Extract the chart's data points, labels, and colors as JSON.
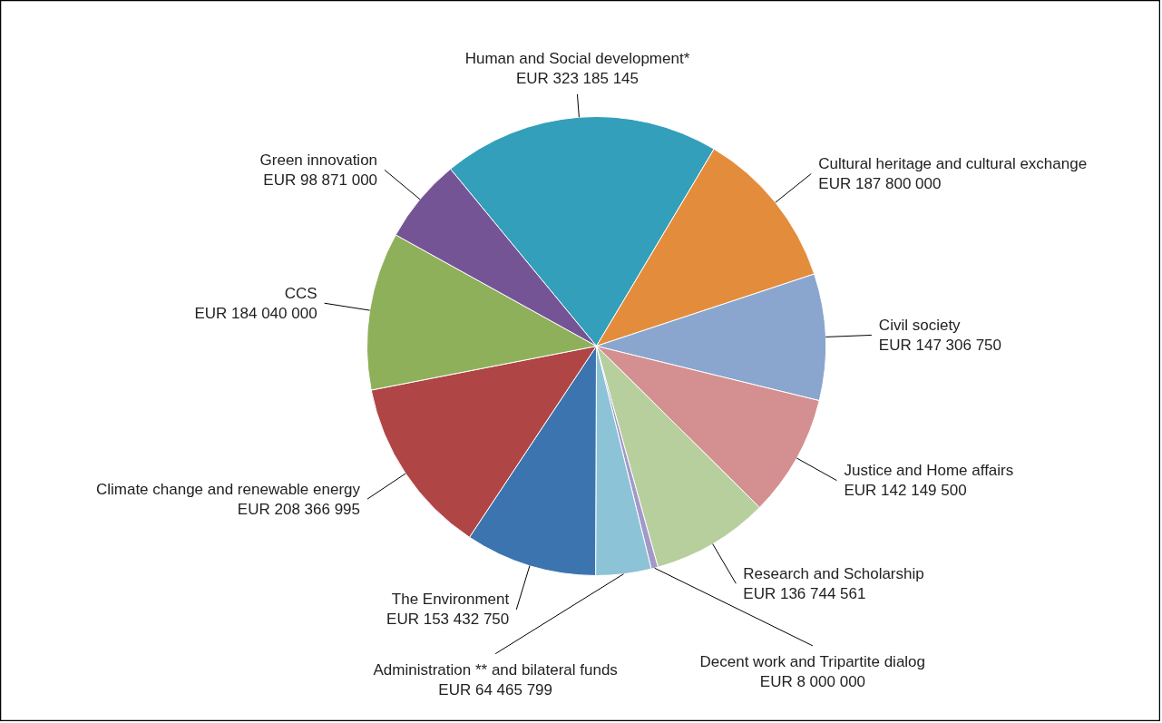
{
  "chart_data": {
    "type": "pie",
    "categories": [
      "Human and Social development*",
      "Cultural heritage and cultural exchange",
      "Civil society",
      "Justice and Home affairs",
      "Research and Scholarship",
      "Decent work and Tripartite dialog",
      "Administration ** and bilateral funds",
      "The Environment",
      "Climate change and renewable energy",
      "CCS",
      "Green innovation"
    ],
    "values": [
      323185145,
      187800000,
      147306750,
      142149500,
      136744561,
      8000000,
      64465799,
      153432750,
      208366995,
      184040000,
      98871000
    ],
    "value_labels": [
      "EUR 323 185 145",
      "EUR 187 800 000",
      "EUR 147 306 750",
      "EUR 142 149 500",
      "EUR 136 744 561",
      "EUR 8 000 000",
      "EUR 64 465 799",
      "EUR 153 432 750",
      "EUR 208 366 995",
      "EUR 184 040 000",
      "EUR 98 871 000"
    ],
    "colors": [
      "#339fba",
      "#e38d3c",
      "#8aa6cf",
      "#d49090",
      "#b6cf9d",
      "#a399c9",
      "#8cc3d6",
      "#3b74ae",
      "#b04546",
      "#8fb05a",
      "#755496"
    ],
    "legend": false
  }
}
